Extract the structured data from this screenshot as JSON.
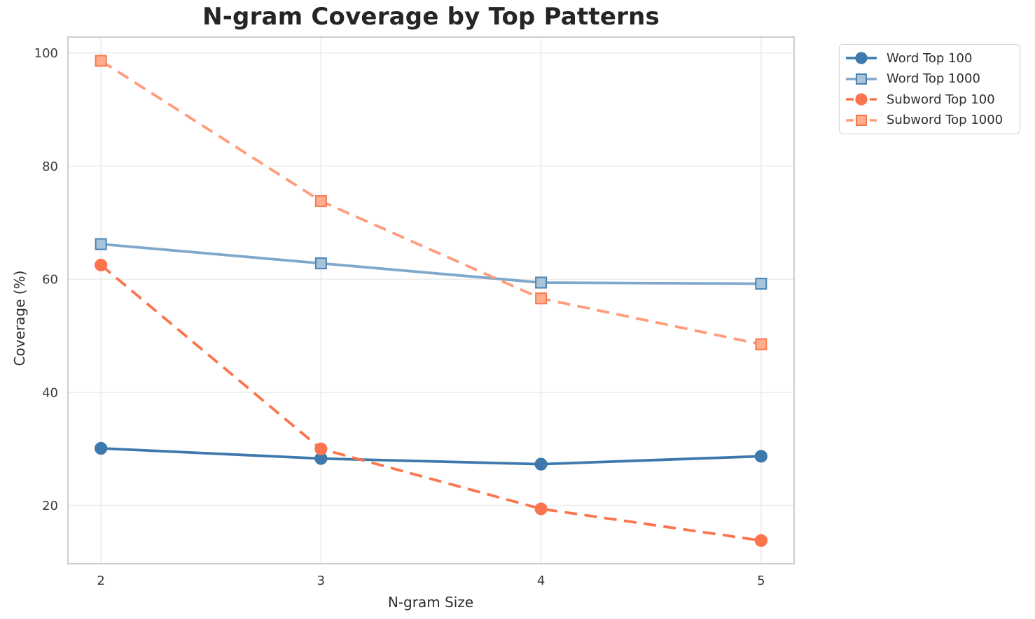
{
  "chart_data": {
    "type": "line",
    "title": "N-gram Coverage by Top Patterns",
    "xlabel": "N-gram Size",
    "ylabel": "Coverage (%)",
    "x": [
      2,
      3,
      4,
      5
    ],
    "xtick_labels": [
      "2",
      "3",
      "4",
      "5"
    ],
    "ytick_values": [
      20,
      40,
      60,
      80,
      100
    ],
    "ytick_labels": [
      "20",
      "40",
      "60",
      "80",
      "100"
    ],
    "xlim": [
      1.85,
      5.15
    ],
    "ylim": [
      9.7,
      102.8
    ],
    "grid": true,
    "legend_position": "outside-upper-right",
    "series": [
      {
        "name": "Word Top 100",
        "values": [
          30.1,
          28.3,
          27.3,
          28.7
        ],
        "color": "#3D79AC",
        "marker": "circle",
        "marker_fill": "#3D79AC",
        "marker_edge": "#3D79AC",
        "dashed": false
      },
      {
        "name": "Word Top 1000",
        "values": [
          66.2,
          62.8,
          59.4,
          59.2
        ],
        "color": "#80A8CA",
        "marker": "square",
        "marker_fill": "#A8C4DB",
        "marker_edge": "#4C83B2",
        "dashed": false
      },
      {
        "name": "Subword Top 100",
        "values": [
          62.5,
          30.0,
          19.4,
          13.8
        ],
        "color": "#FB744E",
        "marker": "circle",
        "marker_fill": "#FB744E",
        "marker_edge": "#FB744E",
        "dashed": true
      },
      {
        "name": "Subword Top 1000",
        "values": [
          98.6,
          73.8,
          56.6,
          48.5
        ],
        "color": "#FF9C7C",
        "marker": "square",
        "marker_fill": "#FFAD8D",
        "marker_edge": "#F8794F",
        "dashed": true
      }
    ],
    "style": {
      "grid_color": "#ECECEC",
      "spine_color": "#C9C9C9",
      "tick_text_color": "#3A3A3A"
    }
  }
}
